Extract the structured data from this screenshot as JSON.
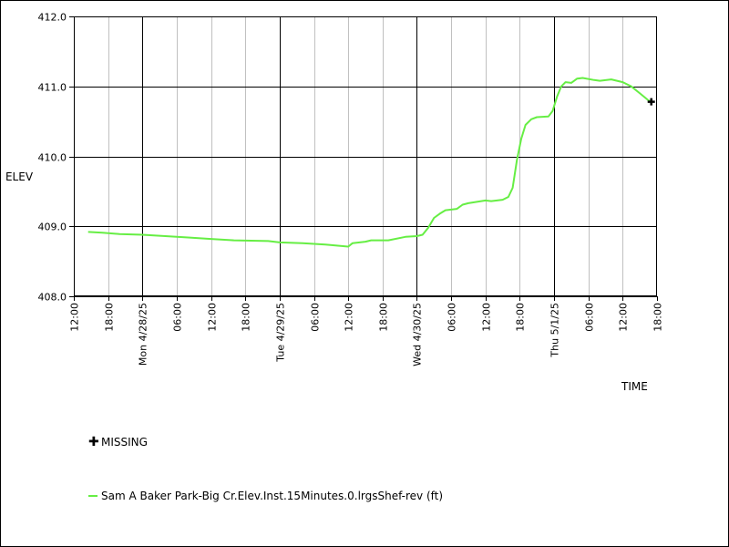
{
  "chart_data": {
    "type": "line",
    "title": "",
    "xlabel": "TIME",
    "ylabel": "ELEV",
    "ylim": [
      408.0,
      412.0
    ],
    "yticks": [
      "408.0",
      "409.0",
      "410.0",
      "411.0",
      "412.0"
    ],
    "xlim": [
      "2025-04-27T12:00",
      "2025-05-01T18:00"
    ],
    "xticks": [
      {
        "t": "2025-04-27T12:00",
        "label": "12:00",
        "major": false
      },
      {
        "t": "2025-04-27T18:00",
        "label": "18:00",
        "major": false
      },
      {
        "t": "2025-04-28T00:00",
        "label": "Mon 4/28/25",
        "major": true
      },
      {
        "t": "2025-04-28T06:00",
        "label": "06:00",
        "major": false
      },
      {
        "t": "2025-04-28T12:00",
        "label": "12:00",
        "major": false
      },
      {
        "t": "2025-04-28T18:00",
        "label": "18:00",
        "major": false
      },
      {
        "t": "2025-04-29T00:00",
        "label": "Tue 4/29/25",
        "major": true
      },
      {
        "t": "2025-04-29T06:00",
        "label": "06:00",
        "major": false
      },
      {
        "t": "2025-04-29T12:00",
        "label": "12:00",
        "major": false
      },
      {
        "t": "2025-04-29T18:00",
        "label": "18:00",
        "major": false
      },
      {
        "t": "2025-04-30T00:00",
        "label": "Wed 4/30/25",
        "major": true
      },
      {
        "t": "2025-04-30T06:00",
        "label": "06:00",
        "major": false
      },
      {
        "t": "2025-04-30T12:00",
        "label": "12:00",
        "major": false
      },
      {
        "t": "2025-04-30T18:00",
        "label": "18:00",
        "major": false
      },
      {
        "t": "2025-05-01T00:00",
        "label": "Thu 5/1/25",
        "major": true
      },
      {
        "t": "2025-05-01T06:00",
        "label": "06:00",
        "major": false
      },
      {
        "t": "2025-05-01T12:00",
        "label": "12:00",
        "major": false
      },
      {
        "t": "2025-05-01T18:00",
        "label": "18:00",
        "major": false
      }
    ],
    "grid": true,
    "series": [
      {
        "name": "Sam A Baker Park-Big Cr.Elev.Inst.15Minutes.0.lrgsShef-rev (ft)",
        "color": "#66ee44",
        "points": [
          [
            "2025-04-27T14:30",
            408.92
          ],
          [
            "2025-04-27T17:00",
            408.91
          ],
          [
            "2025-04-27T20:00",
            408.89
          ],
          [
            "2025-04-28T00:00",
            408.88
          ],
          [
            "2025-04-28T04:00",
            408.86
          ],
          [
            "2025-04-28T08:00",
            408.84
          ],
          [
            "2025-04-28T12:00",
            408.82
          ],
          [
            "2025-04-28T16:00",
            408.8
          ],
          [
            "2025-04-28T22:00",
            408.79
          ],
          [
            "2025-04-29T00:00",
            408.77
          ],
          [
            "2025-04-29T04:00",
            408.76
          ],
          [
            "2025-04-29T08:00",
            408.74
          ],
          [
            "2025-04-29T12:00",
            408.71
          ],
          [
            "2025-04-29T12:45",
            408.76
          ],
          [
            "2025-04-29T15:00",
            408.78
          ],
          [
            "2025-04-29T16:00",
            408.8
          ],
          [
            "2025-04-29T19:00",
            408.8
          ],
          [
            "2025-04-29T22:00",
            408.85
          ],
          [
            "2025-04-30T00:00",
            408.86
          ],
          [
            "2025-04-30T01:00",
            408.88
          ],
          [
            "2025-04-30T02:00",
            408.98
          ],
          [
            "2025-04-30T03:00",
            409.12
          ],
          [
            "2025-04-30T04:00",
            409.18
          ],
          [
            "2025-04-30T05:00",
            409.23
          ],
          [
            "2025-04-30T07:00",
            409.25
          ],
          [
            "2025-04-30T08:00",
            409.31
          ],
          [
            "2025-04-30T09:00",
            409.33
          ],
          [
            "2025-04-30T12:00",
            409.37
          ],
          [
            "2025-04-30T13:00",
            409.36
          ],
          [
            "2025-04-30T15:00",
            409.38
          ],
          [
            "2025-04-30T16:00",
            409.42
          ],
          [
            "2025-04-30T16:45",
            409.55
          ],
          [
            "2025-04-30T17:30",
            409.95
          ],
          [
            "2025-04-30T18:15",
            410.25
          ],
          [
            "2025-04-30T19:00",
            410.45
          ],
          [
            "2025-04-30T20:00",
            410.53
          ],
          [
            "2025-04-30T21:00",
            410.56
          ],
          [
            "2025-04-30T23:00",
            410.57
          ],
          [
            "2025-04-30T23:45",
            410.65
          ],
          [
            "2025-05-01T00:30",
            410.85
          ],
          [
            "2025-05-01T01:15",
            411.0
          ],
          [
            "2025-05-01T02:00",
            411.06
          ],
          [
            "2025-05-01T03:00",
            411.05
          ],
          [
            "2025-05-01T04:00",
            411.11
          ],
          [
            "2025-05-01T05:00",
            411.12
          ],
          [
            "2025-05-01T07:00",
            411.09
          ],
          [
            "2025-05-01T08:00",
            411.08
          ],
          [
            "2025-05-01T10:00",
            411.1
          ],
          [
            "2025-05-01T12:00",
            411.06
          ],
          [
            "2025-05-01T13:30",
            411.0
          ],
          [
            "2025-05-01T15:00",
            410.9
          ],
          [
            "2025-05-01T16:30",
            410.8
          ],
          [
            "2025-05-01T17:00",
            410.78
          ]
        ]
      }
    ],
    "missing": {
      "label": "MISSING",
      "points": [
        [
          "2025-05-01T17:00",
          410.78
        ]
      ]
    }
  }
}
